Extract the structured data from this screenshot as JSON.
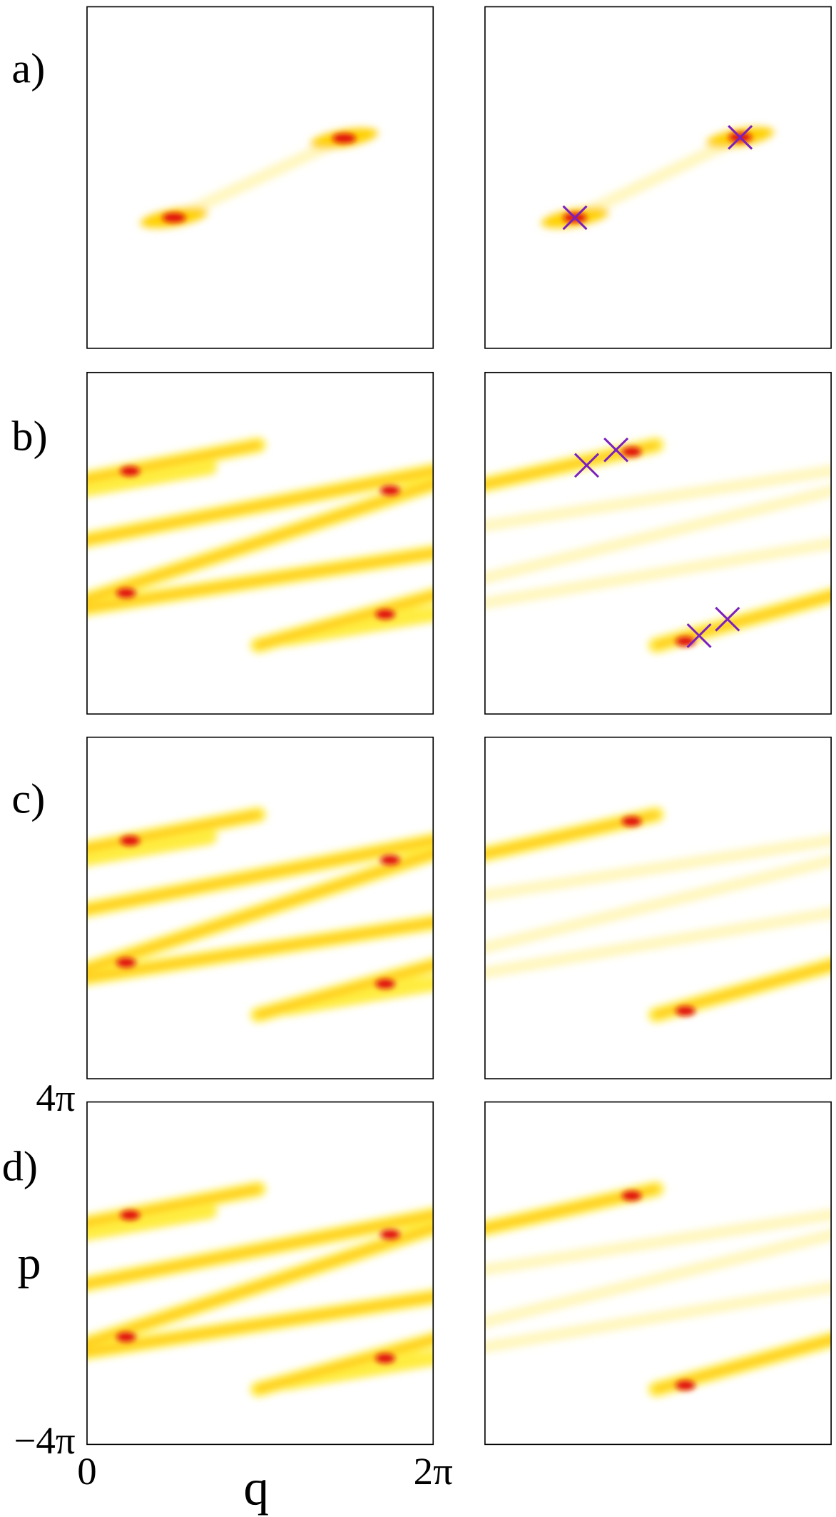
{
  "panels": [
    {
      "label": "a)"
    },
    {
      "label": "b)"
    },
    {
      "label": "c)"
    },
    {
      "label": "d)"
    }
  ],
  "axes": {
    "xlabel": "q",
    "ylabel": "p",
    "xlim": [
      0,
      6.283
    ],
    "ylim": [
      -12.566,
      12.566
    ],
    "xticks": [
      0,
      {
        "value": 6.283,
        "label": "2π"
      }
    ],
    "yticks": [
      {
        "value": -12.566,
        "label": "−4π"
      },
      {
        "value": 12.566,
        "label": "4π"
      }
    ]
  }
}
